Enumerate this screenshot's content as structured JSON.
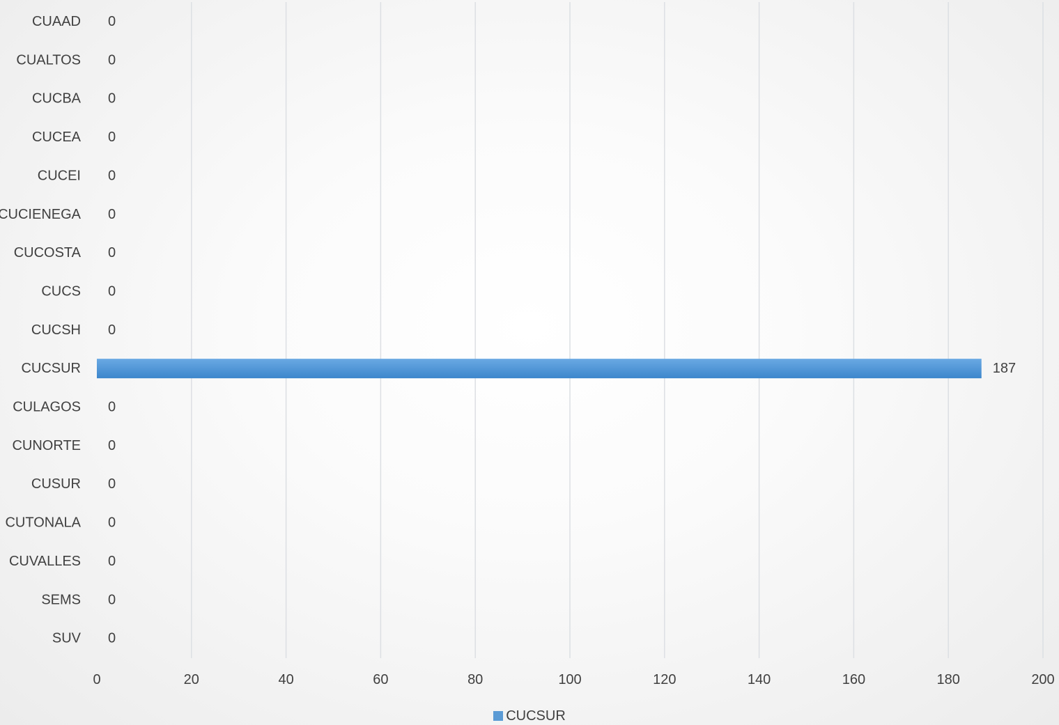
{
  "chart_data": {
    "type": "bar",
    "orientation": "horizontal",
    "categories": [
      "CUAAD",
      "CUALTOS",
      "CUCBA",
      "CUCEA",
      "CUCEI",
      "CUCIENEGA",
      "CUCOSTA",
      "CUCS",
      "CUCSH",
      "CUCSUR",
      "CULAGOS",
      "CUNORTE",
      "CUSUR",
      "CUTONALA",
      "CUVALLES",
      "SEMS",
      "SUV"
    ],
    "series": [
      {
        "name": "CUCSUR",
        "values": [
          0,
          0,
          0,
          0,
          0,
          0,
          0,
          0,
          0,
          187,
          0,
          0,
          0,
          0,
          0,
          0,
          0
        ],
        "color": "#5b9bd5"
      }
    ],
    "data_labels": [
      "0",
      "0",
      "0",
      "0",
      "0",
      "0",
      "0",
      "0",
      "0",
      "187",
      "0",
      "0",
      "0",
      "0",
      "0",
      "0",
      "0"
    ],
    "x_ticks": [
      "0",
      "20",
      "40",
      "60",
      "80",
      "100",
      "120",
      "140",
      "160",
      "180",
      "200"
    ],
    "xlim": [
      0,
      200
    ],
    "grid": true,
    "legend_position": "bottom",
    "title": "",
    "xlabel": "",
    "ylabel": ""
  },
  "legend": {
    "label": "CUCSUR",
    "color": "#5b9bd5"
  },
  "colors": {
    "grid": "#dcdfe3",
    "text": "#404040",
    "bar_top": "#6aa9e3",
    "bar_bottom": "#3c86cc"
  }
}
